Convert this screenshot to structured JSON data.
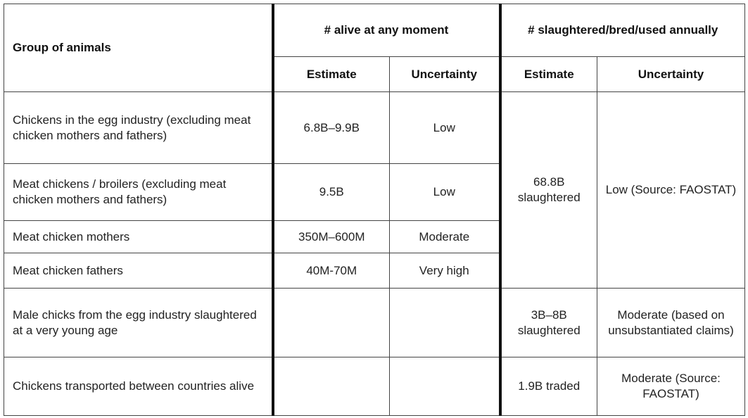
{
  "table": {
    "headers": {
      "group": "Group of animals",
      "alive": "# alive at any moment",
      "annual": "# slaughtered/bred/used annually",
      "alive_estimate": "Estimate",
      "alive_uncertainty": "Uncertainty",
      "annual_estimate": "Estimate",
      "annual_uncertainty": "Uncertainty"
    },
    "rows": [
      {
        "group": "Chickens in the egg industry (excluding meat chicken mothers and fathers)",
        "alive_estimate": "6.8B–9.9B",
        "alive_uncertainty": "Low",
        "annual_estimate": "68.8B slaughtered",
        "annual_uncertainty": "Low (Source: FAOSTAT)"
      },
      {
        "group": "Meat chickens / broilers (excluding meat chicken mothers and fathers)",
        "alive_estimate": "9.5B",
        "alive_uncertainty": "Low"
      },
      {
        "group": "Meat chicken mothers",
        "alive_estimate": "350M–600M",
        "alive_uncertainty": "Moderate"
      },
      {
        "group": "Meat chicken fathers",
        "alive_estimate": "40M-70M",
        "alive_uncertainty": "Very high"
      },
      {
        "group": "Male chicks from the egg industry slaughtered at a very young age",
        "annual_estimate": "3B–8B slaughtered",
        "annual_uncertainty": "Moderate (based on unsubstantiated claims)"
      },
      {
        "group": "Chickens transported between countries alive",
        "annual_estimate": "1.9B traded",
        "annual_uncertainty": "Moderate (Source: FAOSTAT)"
      }
    ]
  }
}
